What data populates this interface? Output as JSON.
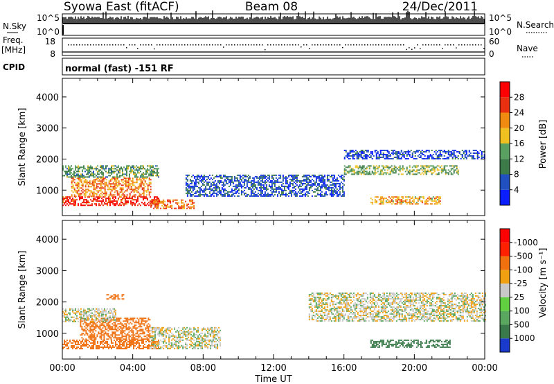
{
  "header": {
    "left_title": "Syowa East (fitACF)",
    "center_title": "Beam 08",
    "right_title": "24/Dec/2011"
  },
  "top_panels": {
    "nsky_label": "N.Sky",
    "nsky_ticks": [
      "10^5",
      "10^0"
    ],
    "nsearch_label": "N.Search",
    "nsearch_ticks": [
      "10^5",
      "10^0"
    ],
    "freq_label_line1": "Freq.",
    "freq_label_line2": "[MHz]",
    "freq_ticks": [
      "18",
      "8"
    ],
    "nave_label": "Nave",
    "nave_ticks": [
      "60",
      "0"
    ],
    "cpid_label": "CPID",
    "cpid_text": "normal (fast) -151 RF"
  },
  "chart_data": [
    {
      "type": "heatmap",
      "ylabel": "Slant Range [km]",
      "yticks": [
        "1000",
        "2000",
        "3000",
        "4000"
      ],
      "ylim": [
        180,
        4600
      ],
      "xlim": [
        0,
        24
      ],
      "colorbar_label": "Power [dB]",
      "colorbar_ticks": [
        "4",
        "8",
        "12",
        "16",
        "20",
        "24",
        "28"
      ],
      "colorbar_colors": [
        "#0a1eff",
        "#2050c0",
        "#3c7a4a",
        "#5aa060",
        "#f0c020",
        "#f08a10",
        "#e83010",
        "#ff0000"
      ],
      "echo_regions": [
        {
          "t0": 0.0,
          "t1": 5.5,
          "r0": 500,
          "r1": 800,
          "level": 28
        },
        {
          "t0": 0.5,
          "t1": 5.0,
          "r0": 800,
          "r1": 1400,
          "level": 22
        },
        {
          "t0": 0.0,
          "t1": 5.5,
          "r0": 1400,
          "r1": 1800,
          "level": 12
        },
        {
          "t0": 5.0,
          "t1": 7.5,
          "r0": 400,
          "r1": 700,
          "level": 24
        },
        {
          "t0": 7.0,
          "t1": 16.0,
          "r0": 800,
          "r1": 1500,
          "level": 6
        },
        {
          "t0": 16.0,
          "t1": 22.5,
          "r0": 1500,
          "r1": 1800,
          "level": 14
        },
        {
          "t0": 17.5,
          "t1": 21.5,
          "r0": 550,
          "r1": 800,
          "level": 20
        },
        {
          "t0": 16.0,
          "t1": 24.0,
          "r0": 2000,
          "r1": 2300,
          "level": 5
        }
      ]
    },
    {
      "type": "heatmap",
      "ylabel": "Slant Range [km]",
      "yticks": [
        "1000",
        "2000",
        "3000",
        "4000"
      ],
      "ylim": [
        180,
        4600
      ],
      "xlim": [
        0,
        24
      ],
      "xticks": [
        "00:00",
        "04:00",
        "08:00",
        "12:00",
        "16:00",
        "20:00",
        "00:00"
      ],
      "xlabel": "Time UT",
      "colorbar_label": "Velocity [m s⁻¹]",
      "colorbar_ticks": [
        "1000",
        "500",
        "100",
        "25",
        "-25",
        "-100",
        "-500",
        "-1000"
      ],
      "colorbar_colors": [
        "#1a3acc",
        "#3a7a4a",
        "#5aa860",
        "#60d040",
        "#c8c8c8",
        "#f0a010",
        "#f07010",
        "#ff2000",
        "#ff0000"
      ],
      "echo_regions": [
        {
          "t0": 0.0,
          "t1": 5.5,
          "r0": 500,
          "r1": 800,
          "level": -300
        },
        {
          "t0": 1.0,
          "t1": 5.0,
          "r0": 800,
          "r1": 1500,
          "level": -200
        },
        {
          "t0": 0.0,
          "t1": 3.0,
          "r0": 1400,
          "r1": 1800,
          "level": 0
        },
        {
          "t0": 5.0,
          "t1": 9.0,
          "r0": 500,
          "r1": 1200,
          "level": 0
        },
        {
          "t0": 14.0,
          "t1": 24.0,
          "r0": 1400,
          "r1": 2300,
          "level": 0
        },
        {
          "t0": 17.5,
          "t1": 22.0,
          "r0": 550,
          "r1": 800,
          "level": 300
        },
        {
          "t0": 2.5,
          "t1": 3.5,
          "r0": 2100,
          "r1": 2250,
          "level": -200
        }
      ]
    }
  ]
}
